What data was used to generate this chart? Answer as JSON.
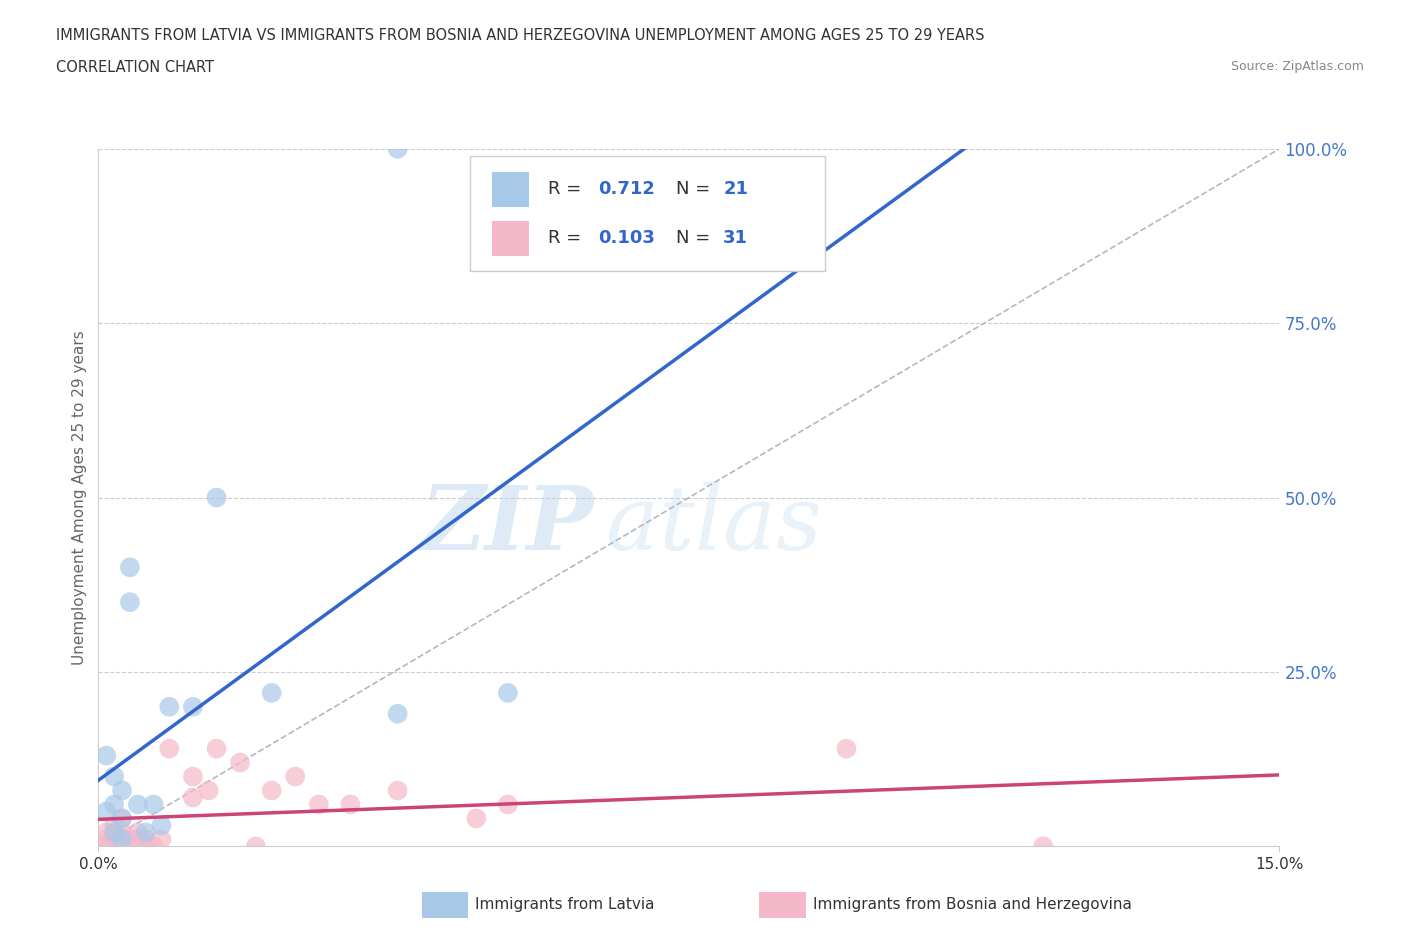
{
  "title_line1": "IMMIGRANTS FROM LATVIA VS IMMIGRANTS FROM BOSNIA AND HERZEGOVINA UNEMPLOYMENT AMONG AGES 25 TO 29 YEARS",
  "title_line2": "CORRELATION CHART",
  "source": "Source: ZipAtlas.com",
  "ylabel": "Unemployment Among Ages 25 to 29 years",
  "xlim": [
    0,
    0.15
  ],
  "ylim": [
    0,
    1.0
  ],
  "yticks": [
    0.0,
    0.25,
    0.5,
    0.75,
    1.0
  ],
  "ytick_labels": [
    "",
    "25.0%",
    "50.0%",
    "75.0%",
    "100.0%"
  ],
  "latvia_R": 0.712,
  "latvia_N": 21,
  "bosnia_R": 0.103,
  "bosnia_N": 31,
  "latvia_color": "#a8c8e8",
  "bosnia_color": "#f4b8c8",
  "latvia_line_color": "#3366cc",
  "bosnia_line_color": "#cc4477",
  "legend_latvia": "Immigrants from Latvia",
  "legend_bosnia": "Immigrants from Bosnia and Herzegovina",
  "watermark_zip": "ZIP",
  "watermark_atlas": "atlas",
  "latvia_x": [
    0.001,
    0.001,
    0.002,
    0.002,
    0.002,
    0.003,
    0.003,
    0.003,
    0.004,
    0.004,
    0.005,
    0.006,
    0.007,
    0.008,
    0.009,
    0.012,
    0.015,
    0.022,
    0.038,
    0.052,
    0.038
  ],
  "latvia_y": [
    0.13,
    0.05,
    0.02,
    0.06,
    0.1,
    0.01,
    0.04,
    0.08,
    0.35,
    0.4,
    0.06,
    0.02,
    0.06,
    0.03,
    0.2,
    0.2,
    0.5,
    0.22,
    0.19,
    0.22,
    1.0
  ],
  "bosnia_x": [
    0.001,
    0.001,
    0.001,
    0.002,
    0.002,
    0.003,
    0.003,
    0.003,
    0.004,
    0.005,
    0.005,
    0.006,
    0.006,
    0.007,
    0.008,
    0.009,
    0.012,
    0.012,
    0.014,
    0.015,
    0.018,
    0.02,
    0.022,
    0.025,
    0.028,
    0.032,
    0.038,
    0.048,
    0.052,
    0.095,
    0.12
  ],
  "bosnia_y": [
    0.0,
    0.01,
    0.02,
    0.01,
    0.03,
    0.0,
    0.02,
    0.04,
    0.01,
    0.01,
    0.02,
    0.0,
    0.01,
    0.0,
    0.01,
    0.14,
    0.07,
    0.1,
    0.08,
    0.14,
    0.12,
    0.0,
    0.08,
    0.1,
    0.06,
    0.06,
    0.08,
    0.04,
    0.06,
    0.14,
    0.0
  ]
}
